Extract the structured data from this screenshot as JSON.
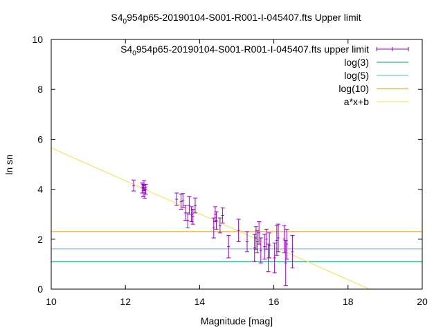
{
  "chart_data": {
    "type": "scatter",
    "title_prefix": "S4",
    "title_sub": "0",
    "title_rest": "954p65-20190104-S001-R001-I-045407.fts Upper limit",
    "xlabel": "Magnitude [mag]",
    "ylabel": "ln sn",
    "xlim": [
      10,
      20
    ],
    "ylim": [
      0,
      10
    ],
    "xticks": [
      10,
      12,
      14,
      16,
      18,
      20
    ],
    "yticks": [
      0,
      2,
      4,
      6,
      8,
      10
    ],
    "grid": false,
    "legend_placement": "top-right",
    "legend": [
      {
        "prefix": "S4",
        "sub": "0",
        "rest": "954p65-20190104-S001-R001-I-045407.fts upper limit",
        "color": "#9400d3",
        "style": "errorbar"
      },
      {
        "label": "log(3)",
        "color": "#009e73",
        "style": "line"
      },
      {
        "label": "log(5)",
        "color": "#56b4e9",
        "style": "line"
      },
      {
        "label": "log(10)",
        "color": "#e69f00",
        "style": "line"
      },
      {
        "label": "a*x+b",
        "color": "#f0e442",
        "style": "line"
      }
    ],
    "hlines": [
      {
        "name": "log(3)",
        "y": 1.0986,
        "color": "#009e73"
      },
      {
        "name": "log(5)",
        "y": 1.6094,
        "color": "#56b4e9"
      },
      {
        "name": "log(10)",
        "y": 2.3026,
        "color": "#e69f00"
      }
    ],
    "fit_line": {
      "name": "a*x+b",
      "a": -0.66,
      "b": 12.26,
      "color": "#f0e442"
    },
    "points": [
      {
        "x": 12.22,
        "y": 4.15,
        "err": 0.22
      },
      {
        "x": 12.45,
        "y": 4.05,
        "err": 0.2
      },
      {
        "x": 12.48,
        "y": 3.95,
        "err": 0.25
      },
      {
        "x": 12.5,
        "y": 4.15,
        "err": 0.2
      },
      {
        "x": 12.52,
        "y": 3.85,
        "err": 0.22
      },
      {
        "x": 12.55,
        "y": 4.0,
        "err": 0.2
      },
      {
        "x": 13.38,
        "y": 3.6,
        "err": 0.25
      },
      {
        "x": 13.5,
        "y": 3.5,
        "err": 0.3
      },
      {
        "x": 13.55,
        "y": 3.55,
        "err": 0.28
      },
      {
        "x": 13.62,
        "y": 3.05,
        "err": 0.3
      },
      {
        "x": 13.68,
        "y": 2.75,
        "err": 0.3
      },
      {
        "x": 13.72,
        "y": 3.35,
        "err": 0.35
      },
      {
        "x": 13.78,
        "y": 3.0,
        "err": 0.3
      },
      {
        "x": 13.82,
        "y": 2.9,
        "err": 0.3
      },
      {
        "x": 13.88,
        "y": 3.35,
        "err": 0.3
      },
      {
        "x": 14.38,
        "y": 2.45,
        "err": 0.4
      },
      {
        "x": 14.42,
        "y": 3.0,
        "err": 0.3
      },
      {
        "x": 14.45,
        "y": 2.75,
        "err": 0.35
      },
      {
        "x": 14.55,
        "y": 2.55,
        "err": 0.3
      },
      {
        "x": 14.62,
        "y": 2.95,
        "err": 0.3
      },
      {
        "x": 14.78,
        "y": 1.7,
        "err": 0.45
      },
      {
        "x": 15.05,
        "y": 2.35,
        "err": 0.45
      },
      {
        "x": 15.28,
        "y": 1.9,
        "err": 0.4
      },
      {
        "x": 15.48,
        "y": 1.65,
        "err": 0.55
      },
      {
        "x": 15.52,
        "y": 2.05,
        "err": 0.45
      },
      {
        "x": 15.55,
        "y": 1.9,
        "err": 0.45
      },
      {
        "x": 15.6,
        "y": 2.25,
        "err": 0.45
      },
      {
        "x": 15.65,
        "y": 1.55,
        "err": 0.5
      },
      {
        "x": 15.75,
        "y": 1.7,
        "err": 0.5
      },
      {
        "x": 15.8,
        "y": 2.0,
        "err": 0.4
      },
      {
        "x": 15.85,
        "y": 1.25,
        "err": 0.55
      },
      {
        "x": 15.88,
        "y": 1.75,
        "err": 0.5
      },
      {
        "x": 16.02,
        "y": 1.25,
        "err": 0.6
      },
      {
        "x": 16.08,
        "y": 1.95,
        "err": 0.6
      },
      {
        "x": 16.12,
        "y": 2.05,
        "err": 0.55
      },
      {
        "x": 16.28,
        "y": 2.0,
        "err": 0.55
      },
      {
        "x": 16.32,
        "y": 1.05,
        "err": 0.9
      },
      {
        "x": 16.35,
        "y": 1.8,
        "err": 0.6
      },
      {
        "x": 16.5,
        "y": 1.5,
        "err": 0.65
      }
    ]
  }
}
